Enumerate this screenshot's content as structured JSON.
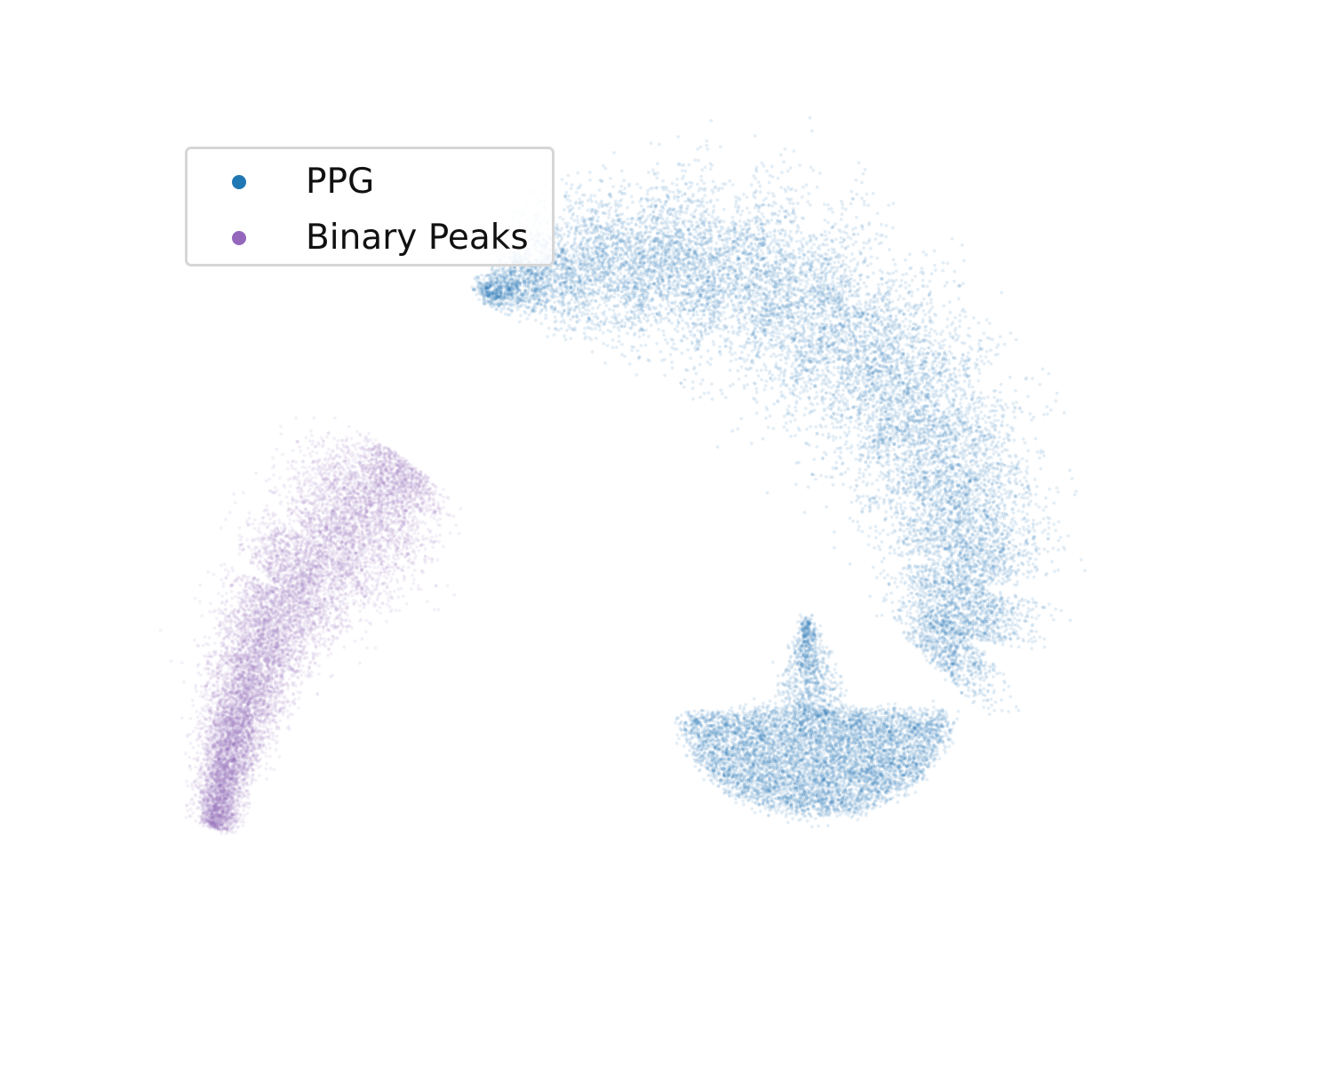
{
  "chart_data": {
    "type": "scatter",
    "title": "",
    "xlabel": "",
    "ylabel": "",
    "axes_visible": false,
    "grid": false,
    "legend_position": "top-left",
    "xlim": [
      0,
      10
    ],
    "ylim": [
      0,
      8
    ],
    "series": [
      {
        "name": "PPG",
        "color": "#1f77b4",
        "point_alpha": 0.12,
        "approx_points": 14000,
        "shape": "arc-with-dense-bottom-fan",
        "centerline": [
          [
            2.88,
            6.55
          ],
          [
            3.3,
            6.7
          ],
          [
            3.8,
            6.85
          ],
          [
            4.5,
            6.95
          ],
          [
            5.3,
            6.9
          ],
          [
            6.0,
            6.65
          ],
          [
            6.6,
            6.3
          ],
          [
            7.1,
            5.8
          ],
          [
            7.5,
            5.3
          ],
          [
            7.75,
            4.7
          ],
          [
            7.9,
            4.1
          ],
          [
            8.0,
            3.5
          ],
          [
            7.9,
            3.0
          ],
          [
            7.6,
            2.7
          ]
        ],
        "dense_cluster_center": [
          6.35,
          2.05
        ]
      },
      {
        "name": "Binary Peaks",
        "color": "#9467bd",
        "point_alpha": 0.1,
        "approx_points": 12000,
        "shape": "curved-elongated-blob",
        "centerline": [
          [
            2.1,
            4.8
          ],
          [
            1.9,
            4.55
          ],
          [
            1.6,
            4.25
          ],
          [
            1.2,
            3.9
          ],
          [
            0.85,
            3.45
          ],
          [
            0.55,
            2.8
          ],
          [
            0.35,
            2.2
          ],
          [
            0.2,
            1.6
          ],
          [
            0.1,
            1.0
          ]
        ]
      }
    ]
  }
}
